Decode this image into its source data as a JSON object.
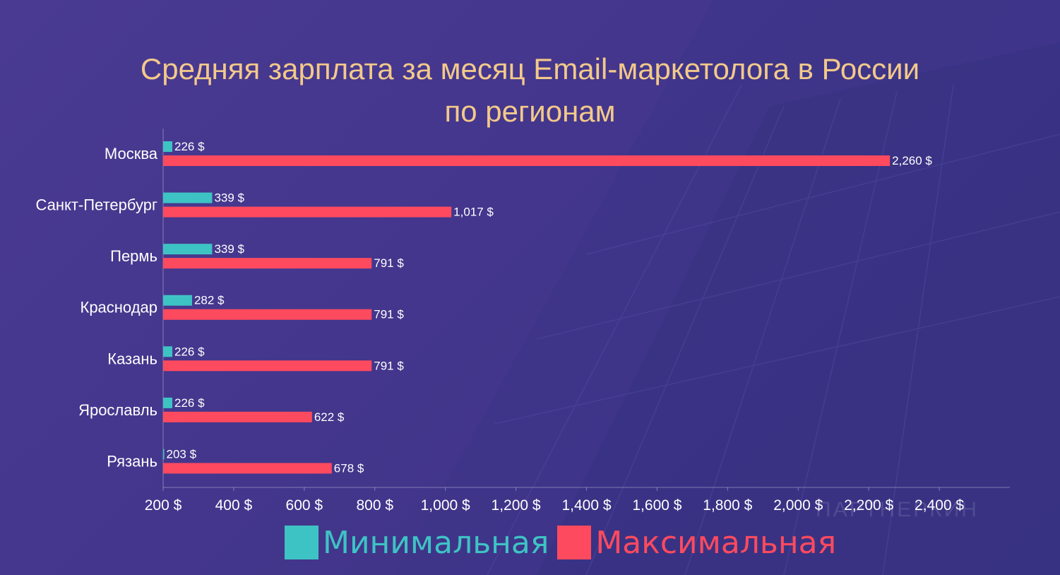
{
  "title_line1": "Средняя зарплата за месяц Email-маркетолога в России",
  "title_line2": "по регионам",
  "watermark": "ПАРТНЕРКИН",
  "colors": {
    "min": "#3ec3c4",
    "max": "#fe4a5e",
    "title": "#f3c98a",
    "text": "#ffffff"
  },
  "chart_data": {
    "type": "bar",
    "orientation": "horizontal",
    "categories": [
      "Москва",
      "Санкт-Петербург",
      "Пермь",
      "Краснодар",
      "Казань",
      "Ярославль",
      "Рязань"
    ],
    "series": [
      {
        "name": "Минимальная",
        "values": [
          226,
          339,
          339,
          282,
          226,
          226,
          203
        ],
        "labels": [
          "226 $",
          "339 $",
          "339 $",
          "282 $",
          "226 $",
          "226 $",
          "203 $"
        ]
      },
      {
        "name": "Максимальная",
        "values": [
          2260,
          1017,
          791,
          791,
          791,
          622,
          678
        ],
        "labels": [
          "2,260 $",
          "1,017 $",
          "791 $",
          "791 $",
          "791 $",
          "622 $",
          "678 $"
        ]
      }
    ],
    "xlim": [
      200,
      2600
    ],
    "xticks": [
      200,
      400,
      600,
      800,
      1000,
      1200,
      1400,
      1600,
      1800,
      2000,
      2200,
      2400
    ],
    "xtick_labels": [
      "200 $",
      "400 $",
      "600 $",
      "800 $",
      "1,000 $",
      "1,200 $",
      "1,400 $",
      "1,600 $",
      "1,800 $",
      "2,000 $",
      "2,200 $",
      "2,400 $"
    ],
    "legend_position": "bottom",
    "grid": false
  },
  "legend": [
    {
      "label": "Минимальная"
    },
    {
      "label": "Максимальная"
    }
  ]
}
